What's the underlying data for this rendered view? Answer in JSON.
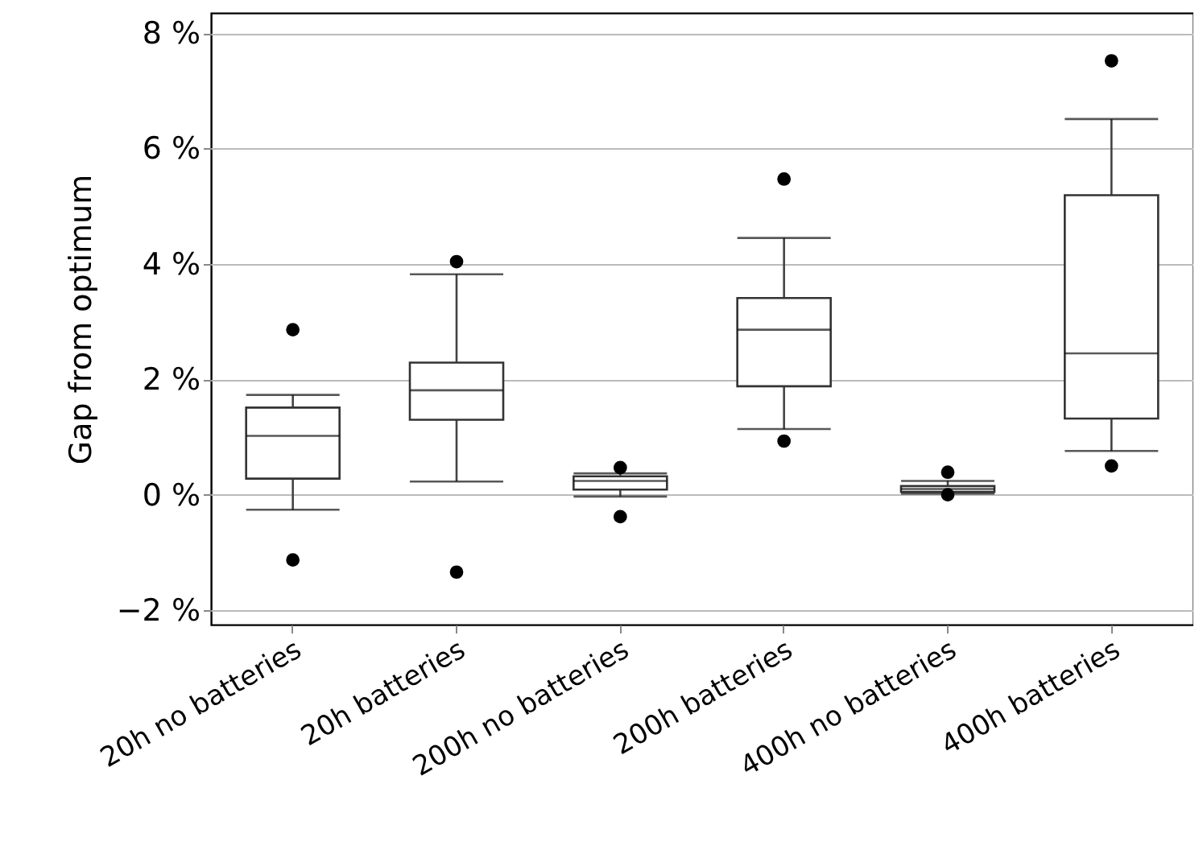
{
  "chart_data": {
    "type": "box",
    "ylabel": "Gap from optimum",
    "categories": [
      "20h no batteries",
      "20h batteries",
      "200h no batteries",
      "200h batteries",
      "400h no batteries",
      "400h batteries"
    ],
    "boxes": [
      {
        "low": -0.26,
        "q1": 0.28,
        "median": 1.02,
        "q3": 1.51,
        "high": 1.73,
        "outliers": [
          2.86,
          -1.13
        ]
      },
      {
        "low": 0.23,
        "q1": 1.3,
        "median": 1.81,
        "q3": 2.29,
        "high": 3.82,
        "outliers": [
          4.04,
          -1.34
        ]
      },
      {
        "low": -0.03,
        "q1": 0.09,
        "median": 0.24,
        "q3": 0.32,
        "high": 0.37,
        "outliers": [
          0.47,
          -0.38
        ]
      },
      {
        "low": 1.14,
        "q1": 1.88,
        "median": 2.86,
        "q3": 3.41,
        "high": 4.45,
        "outliers": [
          5.47,
          0.93
        ]
      },
      {
        "low": 0.02,
        "q1": 0.05,
        "median": 0.1,
        "q3": 0.15,
        "high": 0.24,
        "outliers": [
          0.39,
          0
        ]
      },
      {
        "low": 0.76,
        "q1": 1.32,
        "median": 2.45,
        "q3": 5.19,
        "high": 6.51,
        "outliers": [
          7.52,
          0.5
        ]
      }
    ],
    "ylim": [
      -2.25,
      8.35
    ],
    "yticks": [
      {
        "value": -2,
        "label": "−2 %"
      },
      {
        "value": 0,
        "label": "0 %"
      },
      {
        "value": 2,
        "label": "2 %"
      },
      {
        "value": 4,
        "label": "4 %"
      },
      {
        "value": 6,
        "label": "6 %"
      },
      {
        "value": 8,
        "label": "8 %"
      }
    ],
    "grid": "y"
  }
}
